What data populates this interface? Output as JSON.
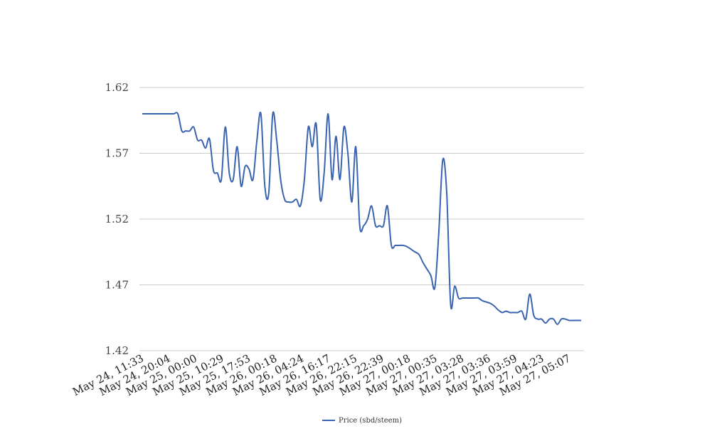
{
  "chart_data": {
    "type": "line",
    "title": "",
    "xlabel": "",
    "ylabel": "",
    "ylim": [
      1.42,
      1.62
    ],
    "y_ticks": [
      "1.42",
      "1.47",
      "1.52",
      "1.57",
      "1.62"
    ],
    "x_tick_labels": [
      "May 24, 11:33",
      "May 24, 20:04",
      "May 25, 00:00",
      "May 25, 10:29",
      "May 25, 17:53",
      "May 26, 00:18",
      "May 26, 04:24",
      "May 26, 16:17",
      "May 26, 22:15",
      "May 26, 22:39",
      "May 27, 00:18",
      "May 27, 00:35",
      "May 27, 03:28",
      "May 27, 03:36",
      "May 27, 03:59",
      "May 27, 04:23",
      "May 27, 05:07"
    ],
    "grid": true,
    "legend_position": "bottom",
    "colors": {
      "line": "#3a63b0",
      "grid": "#cccccc"
    },
    "series": [
      {
        "name": "Price (sbd/steem)",
        "values": [
          1.6,
          1.6,
          1.6,
          1.6,
          1.6,
          1.6,
          1.6,
          1.6,
          1.6,
          1.6,
          1.587,
          1.587,
          1.587,
          1.59,
          1.58,
          1.58,
          1.574,
          1.581,
          1.557,
          1.555,
          1.55,
          1.59,
          1.555,
          1.55,
          1.575,
          1.545,
          1.56,
          1.558,
          1.55,
          1.58,
          1.6,
          1.545,
          1.54,
          1.6,
          1.58,
          1.55,
          1.535,
          1.533,
          1.533,
          1.535,
          1.53,
          1.55,
          1.59,
          1.575,
          1.592,
          1.535,
          1.555,
          1.6,
          1.55,
          1.583,
          1.55,
          1.59,
          1.57,
          1.533,
          1.575,
          1.515,
          1.515,
          1.52,
          1.53,
          1.515,
          1.515,
          1.515,
          1.53,
          1.5,
          1.5,
          1.5,
          1.5,
          1.499,
          1.497,
          1.495,
          1.493,
          1.487,
          1.482,
          1.477,
          1.468,
          1.51,
          1.565,
          1.54,
          1.455,
          1.469,
          1.46,
          1.46,
          1.46,
          1.46,
          1.46,
          1.46,
          1.458,
          1.457,
          1.456,
          1.454,
          1.451,
          1.449,
          1.45,
          1.449,
          1.449,
          1.449,
          1.45,
          1.444,
          1.463,
          1.447,
          1.444,
          1.444,
          1.441,
          1.444,
          1.444,
          1.44,
          1.444,
          1.444,
          1.443,
          1.443,
          1.443,
          1.443
        ]
      }
    ]
  }
}
